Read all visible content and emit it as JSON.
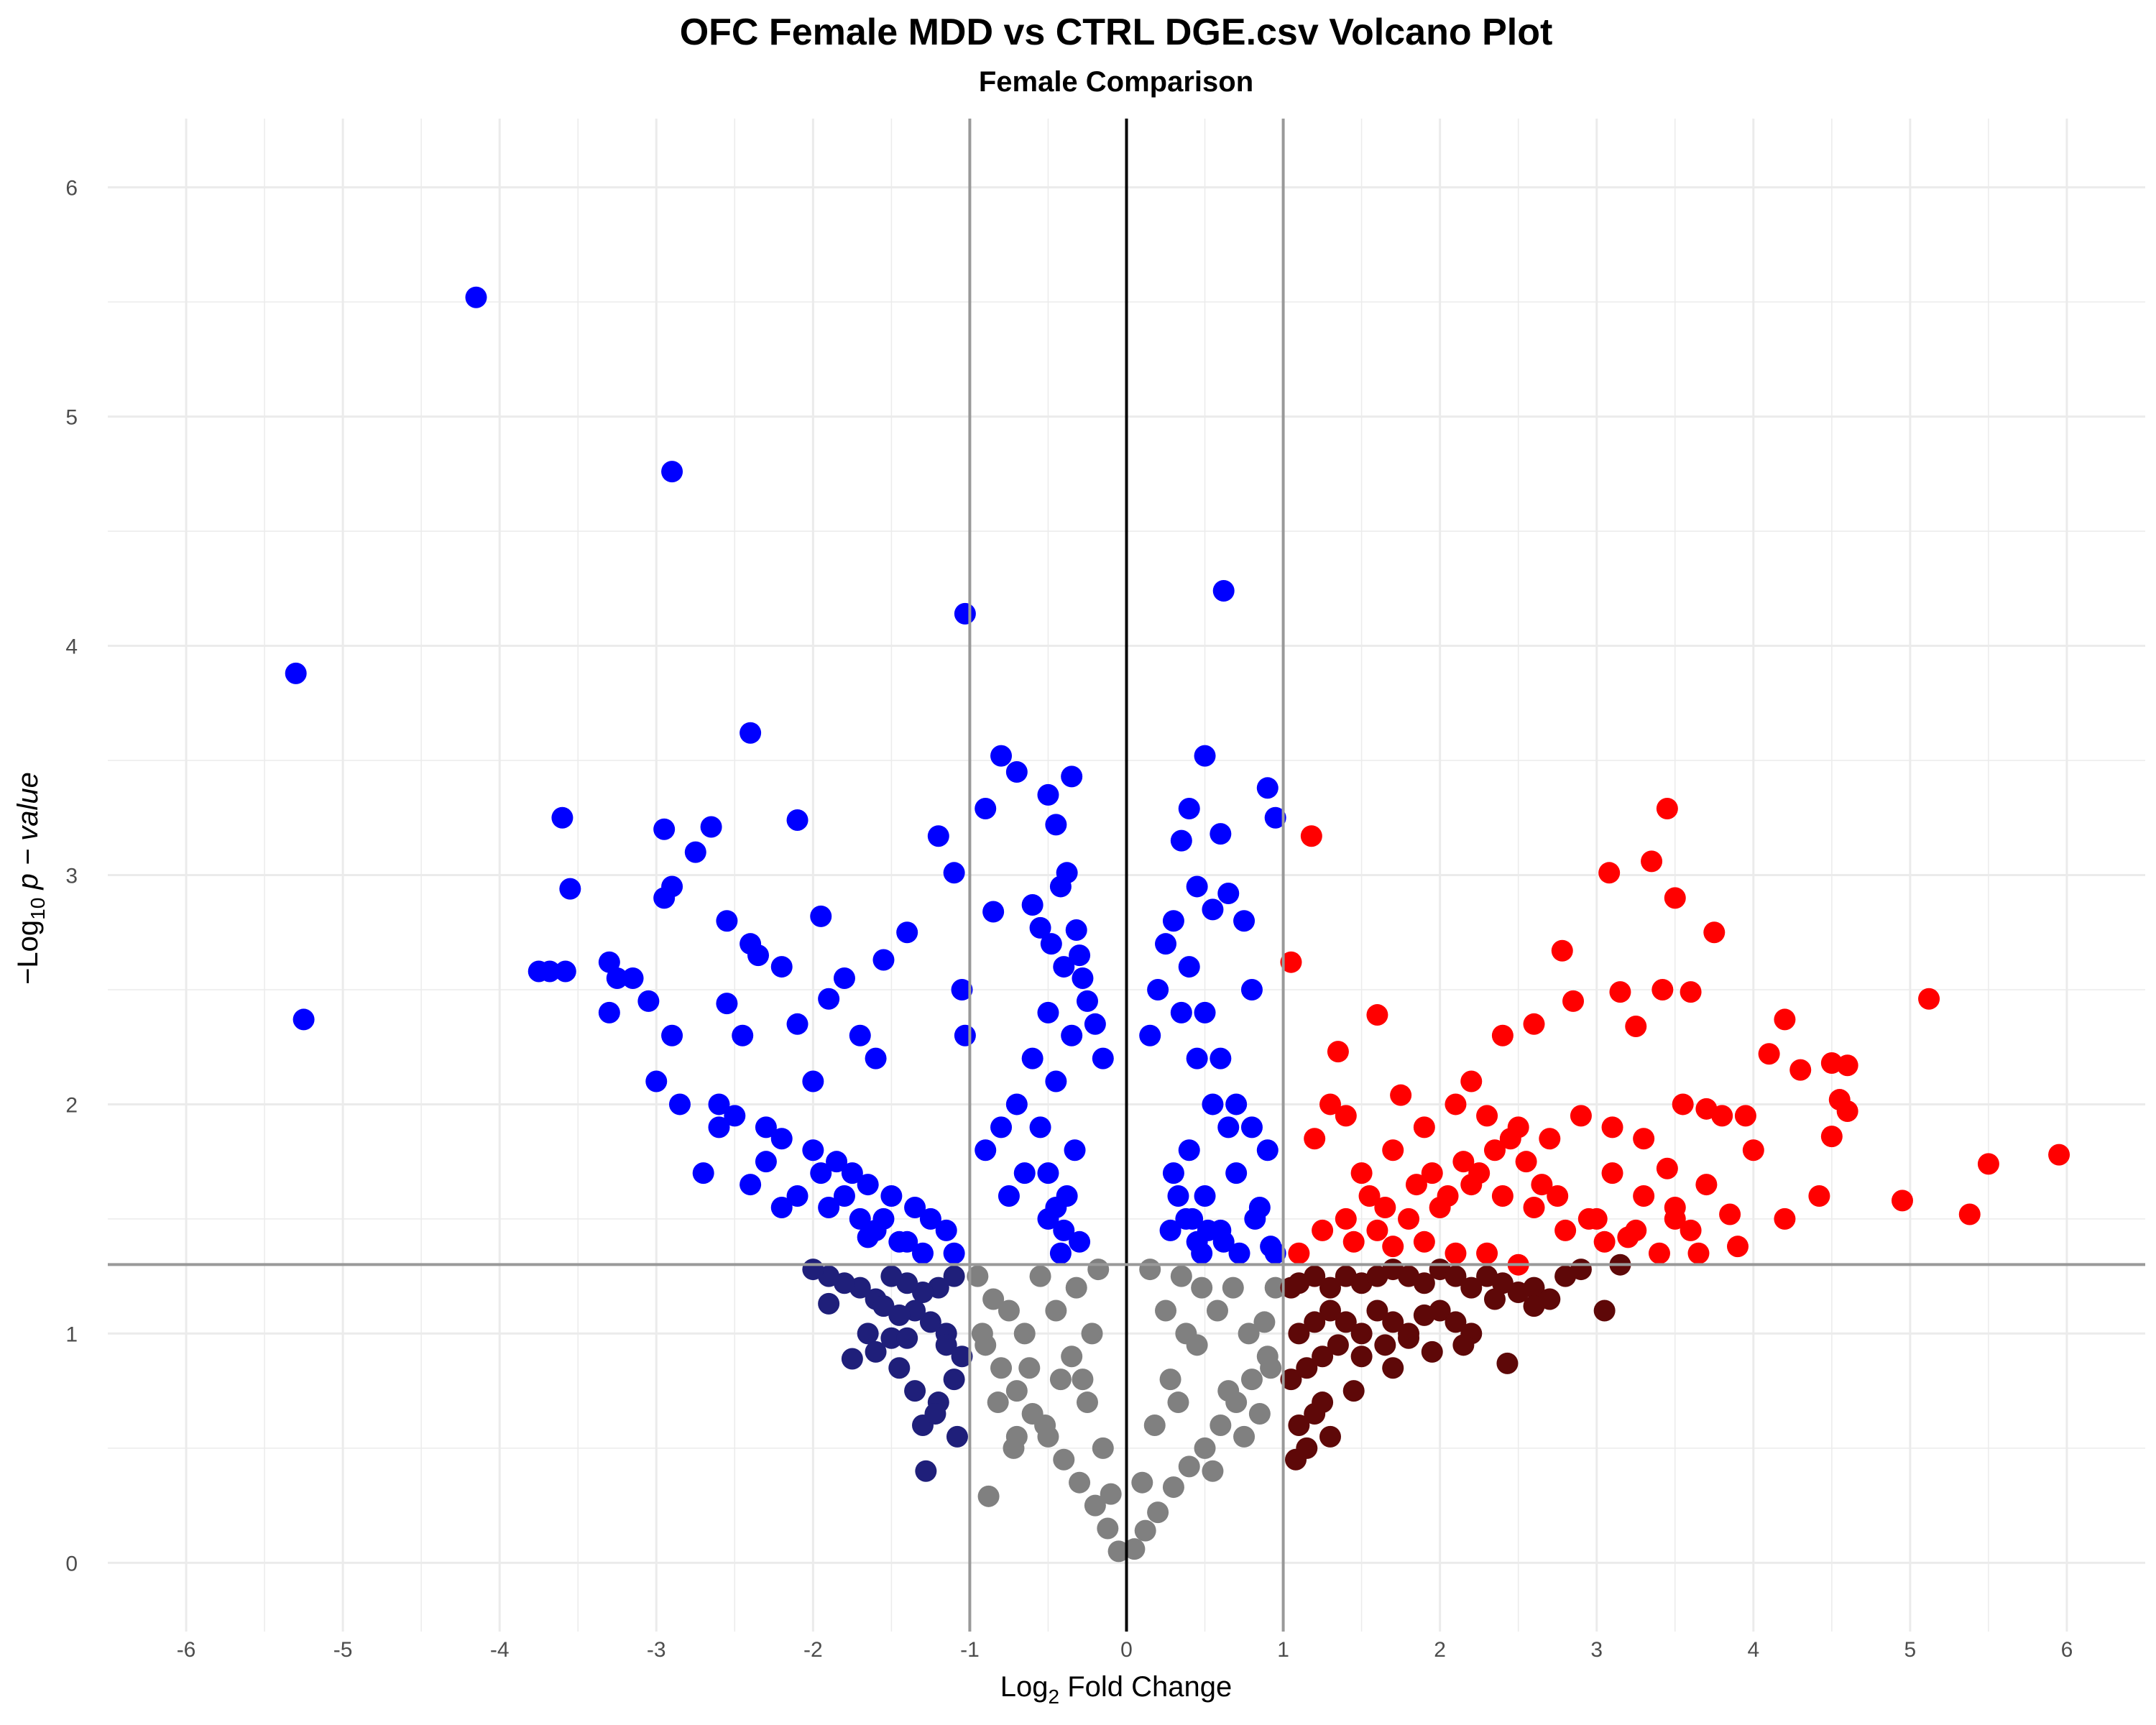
{
  "chart_data": {
    "type": "scatter",
    "title": "OFC Female MDD vs CTRL DGE.csv Volcano Plot",
    "subtitle": "Female Comparison",
    "xlabel": {
      "prefix": "Log",
      "sub": "2",
      "suffix": " Fold Change"
    },
    "ylabel": {
      "prefix": "−Log",
      "sub": "10",
      "suffix": " p − value"
    },
    "xlim": [
      -6.5,
      6.5
    ],
    "ylim": [
      -0.3,
      6.3
    ],
    "x_ticks": [
      -6,
      -5,
      -4,
      -3,
      -2,
      -1,
      0,
      1,
      2,
      3,
      4,
      5,
      6
    ],
    "x_tick_labels": [
      "-6",
      "-5",
      "-4",
      "-3",
      "-2",
      "-1",
      "0",
      "1",
      "2",
      "3",
      "4",
      "5",
      "6"
    ],
    "y_ticks": [
      0,
      1,
      2,
      3,
      4,
      5,
      6
    ],
    "y_tick_labels": [
      "0",
      "1",
      "2",
      "3",
      "4",
      "5",
      "6"
    ],
    "grid": true,
    "legend": "none",
    "thresholds": {
      "log2fc": [
        -1,
        1
      ],
      "neg_log10_p": 1.301
    },
    "reference_lines": {
      "vertical": [
        -1,
        0,
        1
      ],
      "horizontal": [
        1.301
      ]
    },
    "colors": {
      "sig_any": "#0000ff",
      "sig_up": "#ff0000",
      "ns_down": "#1f1f7a",
      "ns_up": "#5e0808",
      "ns": "#808080",
      "threshold_line": "#999999",
      "zero_line": "#000000",
      "grid": "#ebebeb"
    },
    "series": [
      {
        "category": "ns",
        "x": [
          -0.05,
          0.05,
          -0.12,
          0.12,
          -0.2,
          0.2,
          -0.3,
          0.3,
          -0.4,
          0.4,
          -0.5,
          0.5,
          -0.6,
          0.6,
          -0.7,
          0.7,
          -0.8,
          0.8,
          -0.9,
          0.9,
          -0.15,
          0.18,
          -0.25,
          0.28,
          -0.35,
          0.38,
          -0.45,
          0.48,
          -0.55,
          0.58,
          -0.65,
          0.68,
          -0.75,
          0.78,
          -0.85,
          0.88,
          -0.95,
          0.95,
          -0.22,
          0.25,
          -0.42,
          0.45,
          -0.62,
          0.65,
          -0.82,
          0.85,
          -0.32,
          0.35,
          -0.52,
          0.55,
          -0.72,
          0.75,
          -0.92,
          0.92,
          -0.1,
          0.1,
          -0.18,
          0.15,
          -0.88,
          -0.7,
          -0.28,
          0.33
        ],
        "y": [
          0.05,
          0.06,
          0.15,
          0.14,
          0.25,
          0.22,
          0.35,
          0.33,
          0.45,
          0.42,
          0.55,
          0.5,
          0.65,
          0.6,
          0.75,
          0.7,
          0.85,
          0.8,
          0.95,
          0.9,
          0.5,
          0.6,
          0.7,
          0.8,
          0.9,
          1.0,
          1.1,
          1.2,
          1.25,
          1.1,
          1.0,
          1.2,
          1.1,
          1.0,
          1.15,
          1.05,
          1.25,
          1.2,
          1.0,
          1.1,
          0.8,
          0.95,
          0.85,
          0.75,
          0.7,
          0.65,
          1.2,
          1.25,
          0.6,
          0.4,
          0.5,
          0.55,
          1.0,
          0.85,
          0.3,
          0.35,
          1.28,
          1.28,
          0.29,
          0.55,
          0.8,
          0.7
        ]
      },
      {
        "category": "ns_down",
        "x": [
          -1.1,
          -1.2,
          -1.3,
          -1.4,
          -1.5,
          -1.6,
          -1.7,
          -1.8,
          -1.9,
          -2.0,
          -1.15,
          -1.25,
          -1.35,
          -1.45,
          -1.55,
          -1.65,
          -1.05,
          -1.1,
          -1.2,
          -1.3,
          -1.15,
          -1.75,
          -1.9,
          -1.28,
          -1.6,
          -1.45,
          -1.35,
          -1.5,
          -1.22,
          -1.08,
          -1.4
        ],
        "y": [
          1.25,
          1.2,
          1.18,
          1.22,
          1.25,
          1.15,
          1.2,
          1.22,
          1.25,
          1.28,
          1.0,
          1.05,
          1.1,
          1.08,
          1.12,
          1.0,
          0.9,
          0.8,
          0.7,
          0.6,
          0.95,
          0.89,
          1.13,
          0.4,
          0.92,
          0.85,
          0.75,
          0.98,
          0.65,
          0.55,
          0.98
        ]
      },
      {
        "category": "ns_up",
        "x": [
          1.05,
          1.1,
          1.2,
          1.3,
          1.4,
          1.5,
          1.6,
          1.7,
          1.8,
          1.9,
          2.0,
          2.1,
          2.2,
          2.3,
          2.4,
          2.5,
          2.6,
          2.7,
          1.1,
          1.2,
          1.3,
          1.4,
          1.5,
          1.6,
          1.7,
          1.8,
          1.9,
          2.0,
          2.1,
          2.2,
          1.05,
          1.15,
          1.25,
          1.35,
          1.5,
          1.65,
          1.8,
          1.1,
          1.2,
          1.3,
          2.43,
          3.05,
          3.15,
          2.8,
          2.9,
          2.35,
          2.6,
          2.15,
          1.95,
          1.45,
          1.25,
          1.15,
          1.08,
          1.7
        ],
        "y": [
          1.2,
          1.22,
          1.25,
          1.2,
          1.25,
          1.22,
          1.25,
          1.28,
          1.25,
          1.22,
          1.28,
          1.25,
          1.2,
          1.25,
          1.22,
          1.18,
          1.2,
          1.15,
          1.0,
          1.05,
          1.1,
          1.05,
          1.0,
          1.1,
          1.05,
          1.0,
          1.08,
          1.1,
          1.05,
          1.0,
          0.8,
          0.85,
          0.9,
          0.95,
          0.9,
          0.95,
          0.98,
          0.6,
          0.65,
          0.55,
          0.87,
          1.1,
          1.3,
          1.25,
          1.28,
          1.15,
          1.12,
          0.95,
          0.92,
          0.75,
          0.7,
          0.5,
          0.45,
          0.85
        ]
      },
      {
        "category": "sig_any",
        "x": [
          -5.3,
          -5.25,
          -4.15,
          -2.9,
          -1.03,
          -2.4,
          -3.6,
          -2.95,
          -2.65,
          -2.1,
          -2.75,
          -3.55,
          -2.95,
          -2.9,
          -1.95,
          -1.4,
          -1.55,
          -3.75,
          -3.68,
          -3.58,
          -3.3,
          -3.25,
          -3.15,
          -3.05,
          -3.3,
          -2.55,
          -2.4,
          -2.35,
          -2.2,
          -2.45,
          -2.55,
          -1.9,
          -1.8,
          -1.7,
          -1.6,
          -2.1,
          -2.0,
          -1.2,
          -1.1,
          -1.05,
          -1.03,
          -0.8,
          -0.7,
          -0.5,
          -0.35,
          -0.45,
          -0.9,
          -0.85,
          -0.6,
          -0.55,
          -0.48,
          -0.42,
          -0.38,
          -0.32,
          -0.3,
          -0.28,
          -0.25,
          -0.2,
          -0.15,
          -0.4,
          -0.5,
          -0.6,
          -0.7,
          -0.8,
          -0.9,
          -0.35,
          -0.45,
          -0.55,
          -0.65,
          -0.75,
          -0.5,
          -0.4,
          -0.3,
          -0.42,
          -0.38,
          -0.5,
          -0.33,
          -0.45,
          -2.9,
          -3.0,
          -2.85,
          -2.6,
          -2.5,
          -2.3,
          -2.2,
          -2.0,
          -1.85,
          -1.75,
          -1.65,
          -1.5,
          -1.35,
          -1.25,
          -1.15,
          -2.7,
          -2.4,
          -2.1,
          -1.9,
          -1.7,
          -1.6,
          -1.45,
          -1.3,
          -2.6,
          -2.3,
          -1.95,
          -1.8,
          -1.55,
          -1.4,
          -1.1,
          -2.2,
          -1.65,
          0.62,
          0.5,
          0.6,
          0.4,
          0.65,
          0.9,
          0.95,
          0.35,
          0.45,
          0.55,
          0.75,
          0.8,
          0.3,
          0.25,
          0.2,
          0.15,
          0.4,
          0.5,
          0.6,
          0.7,
          0.8,
          0.9,
          0.35,
          0.45,
          0.55,
          0.65,
          0.4,
          0.3,
          0.5,
          0.38,
          0.6,
          0.45,
          0.85,
          0.95,
          0.7,
          0.33,
          0.42,
          0.52,
          0.62,
          0.72,
          0.82,
          0.92,
          0.28,
          0.48
        ],
        "y": [
          3.88,
          2.37,
          5.52,
          4.76,
          4.14,
          3.62,
          3.25,
          3.2,
          3.21,
          3.24,
          3.1,
          2.94,
          2.9,
          2.95,
          2.82,
          2.75,
          2.63,
          2.58,
          2.58,
          2.58,
          2.62,
          2.55,
          2.55,
          2.45,
          2.4,
          2.8,
          2.7,
          2.65,
          2.6,
          2.3,
          2.44,
          2.46,
          2.55,
          2.3,
          2.2,
          2.35,
          2.1,
          3.17,
          3.01,
          2.5,
          2.3,
          3.52,
          3.45,
          3.35,
          3.43,
          3.22,
          3.29,
          2.84,
          2.87,
          2.77,
          2.7,
          2.95,
          3.01,
          2.76,
          2.65,
          2.55,
          2.45,
          2.35,
          2.2,
          2.6,
          2.4,
          2.2,
          2.0,
          1.9,
          1.8,
          2.3,
          2.1,
          1.9,
          1.7,
          1.6,
          1.5,
          1.45,
          1.4,
          1.35,
          1.6,
          1.7,
          1.8,
          1.55,
          2.3,
          2.1,
          2.0,
          2.0,
          1.95,
          1.9,
          1.85,
          1.8,
          1.75,
          1.7,
          1.65,
          1.6,
          1.55,
          1.5,
          1.45,
          1.7,
          1.65,
          1.6,
          1.55,
          1.5,
          1.45,
          1.4,
          1.35,
          1.9,
          1.75,
          1.7,
          1.6,
          1.5,
          1.4,
          1.35,
          1.55,
          1.42,
          4.24,
          3.52,
          3.18,
          3.29,
          2.92,
          3.38,
          3.25,
          3.15,
          2.95,
          2.85,
          2.8,
          2.5,
          2.8,
          2.7,
          2.5,
          2.3,
          2.6,
          2.4,
          2.2,
          2.0,
          1.9,
          1.8,
          2.4,
          2.2,
          2.0,
          1.9,
          1.8,
          1.7,
          1.6,
          1.5,
          1.45,
          1.4,
          1.55,
          1.35,
          1.7,
          1.6,
          1.5,
          1.45,
          1.4,
          1.35,
          1.5,
          1.38,
          1.45,
          1.35
        ]
      },
      {
        "category": "sig_up",
        "x": [
          3.45,
          3.35,
          3.08,
          3.5,
          3.75,
          2.78,
          3.6,
          3.42,
          3.15,
          2.85,
          3.25,
          1.18,
          1.05,
          1.6,
          1.35,
          1.75,
          2.2,
          2.4,
          2.6,
          1.3,
          1.2,
          1.4,
          1.5,
          1.7,
          1.9,
          2.1,
          2.3,
          2.5,
          2.7,
          2.9,
          3.1,
          3.3,
          3.55,
          3.7,
          3.8,
          4.0,
          4.2,
          4.1,
          4.3,
          4.5,
          4.6,
          4.55,
          4.5,
          4.6,
          5.12,
          5.95,
          5.5,
          4.95,
          5.38,
          4.42,
          4.2,
          3.85,
          3.9,
          3.7,
          3.6,
          3.5,
          3.2,
          3.0,
          2.8,
          2.6,
          2.4,
          2.2,
          2.0,
          1.8,
          1.6,
          1.4,
          1.55,
          1.65,
          1.85,
          1.95,
          2.05,
          2.15,
          2.25,
          2.35,
          2.45,
          2.55,
          2.65,
          2.75,
          2.95,
          3.05,
          3.25,
          3.4,
          3.65,
          3.95,
          1.45,
          1.25,
          1.1,
          2.5,
          2.3,
          2.1,
          1.9,
          1.7,
          3.1,
          3.3,
          3.5,
          3.45
        ],
        "y": [
          3.29,
          3.06,
          3.01,
          2.9,
          2.75,
          2.67,
          2.49,
          2.5,
          2.49,
          2.45,
          2.34,
          3.17,
          2.62,
          2.39,
          2.23,
          2.04,
          2.1,
          2.3,
          2.35,
          2.0,
          1.85,
          1.95,
          1.7,
          1.8,
          1.9,
          2.0,
          1.95,
          1.9,
          1.85,
          1.95,
          1.9,
          1.85,
          2.0,
          1.98,
          1.95,
          1.8,
          2.37,
          2.22,
          2.15,
          2.18,
          2.17,
          2.02,
          1.86,
          1.97,
          2.46,
          1.78,
          1.74,
          1.58,
          1.52,
          1.6,
          1.5,
          1.52,
          1.38,
          1.65,
          1.45,
          1.55,
          1.42,
          1.5,
          1.45,
          1.55,
          1.6,
          1.65,
          1.55,
          1.5,
          1.45,
          1.5,
          1.6,
          1.55,
          1.65,
          1.7,
          1.6,
          1.75,
          1.7,
          1.8,
          1.85,
          1.75,
          1.65,
          1.6,
          1.5,
          1.4,
          1.45,
          1.35,
          1.35,
          1.95,
          1.4,
          1.45,
          1.35,
          1.3,
          1.35,
          1.35,
          1.4,
          1.38,
          1.7,
          1.6,
          1.5,
          1.72
        ]
      }
    ]
  }
}
